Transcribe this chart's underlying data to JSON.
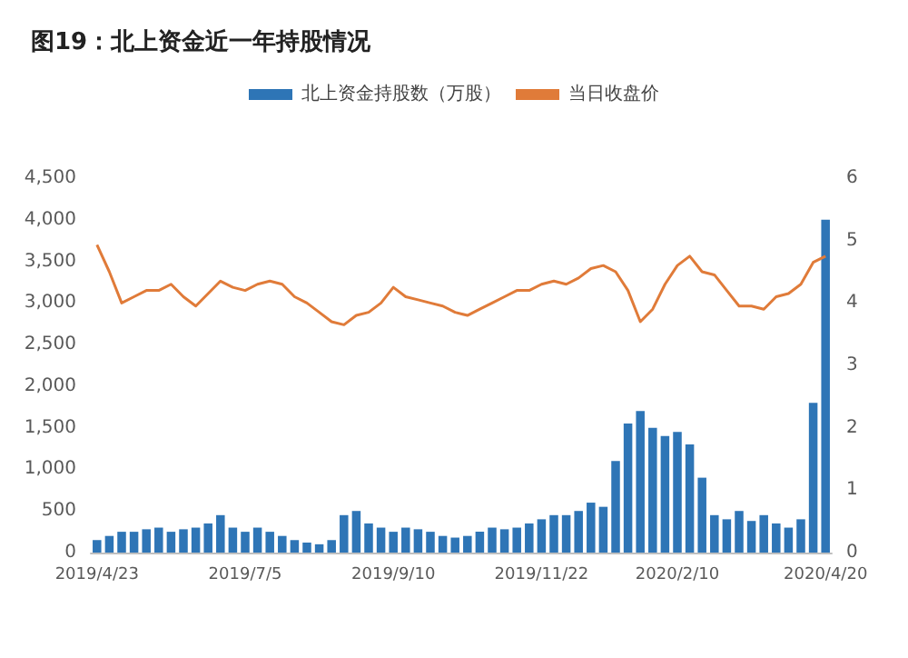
{
  "chart_data": {
    "type": "bar",
    "title": "图19：北上资金近一年持股情况",
    "categories": [
      "2019/4/23",
      null,
      null,
      null,
      null,
      null,
      null,
      null,
      null,
      null,
      null,
      null,
      "2019/7/5",
      null,
      null,
      null,
      null,
      null,
      null,
      null,
      null,
      null,
      null,
      null,
      "2019/9/10",
      null,
      null,
      null,
      null,
      null,
      null,
      null,
      null,
      null,
      null,
      null,
      "2019/11/22",
      null,
      null,
      null,
      null,
      null,
      null,
      null,
      null,
      null,
      null,
      "2020/2/10",
      null,
      null,
      null,
      null,
      null,
      null,
      null,
      null,
      null,
      null,
      null,
      "2020/4/20"
    ],
    "series": [
      {
        "name": "北上资金持股数（万股）",
        "color": "#2e75b6",
        "values": [
          150,
          200,
          250,
          250,
          280,
          300,
          250,
          280,
          300,
          350,
          450,
          300,
          250,
          300,
          250,
          200,
          150,
          120,
          100,
          150,
          450,
          500,
          350,
          300,
          250,
          300,
          280,
          250,
          200,
          180,
          200,
          250,
          300,
          280,
          300,
          350,
          400,
          450,
          450,
          500,
          600,
          550,
          1100,
          1550,
          1700,
          1500,
          1400,
          1450,
          1300,
          900,
          450,
          400,
          500,
          380,
          450,
          350,
          300,
          400,
          1800,
          4000
        ]
      },
      {
        "name": "当日收盘价",
        "type": "line",
        "axis": "y2",
        "color": "#e07b39",
        "values": [
          4.93,
          4.5,
          4.0,
          4.1,
          4.2,
          4.2,
          4.3,
          4.1,
          3.95,
          4.15,
          4.35,
          4.25,
          4.2,
          4.3,
          4.35,
          4.3,
          4.1,
          4.0,
          3.85,
          3.7,
          3.65,
          3.8,
          3.85,
          4.0,
          4.25,
          4.1,
          4.05,
          4.0,
          3.95,
          3.85,
          3.8,
          3.9,
          4.0,
          4.1,
          4.2,
          4.2,
          4.3,
          4.35,
          4.3,
          4.4,
          4.55,
          4.6,
          4.5,
          4.2,
          3.7,
          3.9,
          4.3,
          4.6,
          4.75,
          4.5,
          4.45,
          4.2,
          3.95,
          3.95,
          3.9,
          4.1,
          4.15,
          4.3,
          4.65,
          4.75
        ]
      }
    ],
    "ylim": [
      0,
      4500
    ],
    "yticks": [
      0,
      500,
      {
        "value": 1000,
        "label": "1,000"
      },
      {
        "value": 1500,
        "label": "1,500"
      },
      {
        "value": 2000,
        "label": "2,000"
      },
      {
        "value": 2500,
        "label": "2,500"
      },
      {
        "value": 3000,
        "label": "3,000"
      },
      {
        "value": 3500,
        "label": "3,500"
      },
      {
        "value": 4000,
        "label": "4,000"
      },
      {
        "value": 4500,
        "label": "4,500"
      }
    ],
    "y2lim": [
      0,
      6
    ],
    "y2ticks": [
      0,
      1,
      2,
      3,
      4,
      5,
      6
    ],
    "legend": "top",
    "grid": false,
    "marker": "none",
    "line_style": "solid"
  }
}
